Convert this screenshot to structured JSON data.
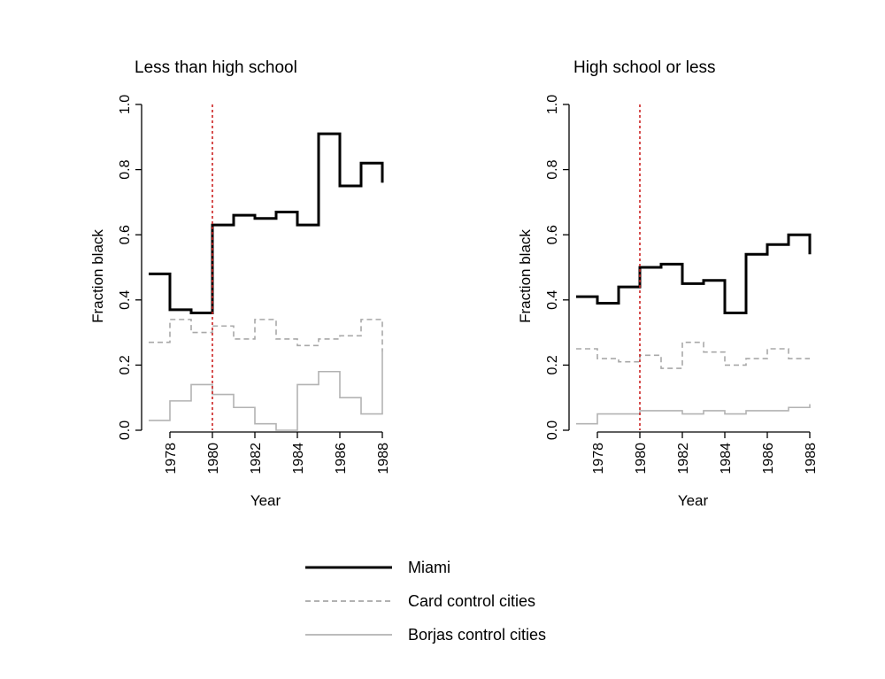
{
  "chart_data": [
    {
      "type": "line",
      "step": true,
      "title": "Less than high school",
      "xlabel": "Year",
      "ylabel": "Fraction black",
      "xlim": [
        1977,
        1988
      ],
      "ylim": [
        0.0,
        1.0
      ],
      "xticks": [
        "1978",
        "1980",
        "1982",
        "1984",
        "1986",
        "1988"
      ],
      "yticks": [
        "0.0",
        "0.2",
        "0.4",
        "0.6",
        "0.8",
        "1.0"
      ],
      "vline": {
        "x": 1980,
        "color": "#cc2222",
        "style": "dotted"
      },
      "x": [
        1977,
        1978,
        1979,
        1980,
        1981,
        1982,
        1983,
        1984,
        1985,
        1986,
        1987,
        1988
      ],
      "series": [
        {
          "name": "Miami",
          "values": [
            0.48,
            0.37,
            0.36,
            0.63,
            0.66,
            0.65,
            0.67,
            0.63,
            0.91,
            0.75,
            0.82,
            0.76
          ]
        },
        {
          "name": "Card control cities",
          "values": [
            0.27,
            0.34,
            0.3,
            0.32,
            0.28,
            0.34,
            0.28,
            0.26,
            0.28,
            0.29,
            0.34,
            0.24
          ]
        },
        {
          "name": "Borjas control cities",
          "values": [
            0.03,
            0.09,
            0.14,
            0.11,
            0.07,
            0.02,
            0.0,
            0.14,
            0.18,
            0.1,
            0.05,
            0.24
          ]
        }
      ]
    },
    {
      "type": "line",
      "step": true,
      "title": "High school or less",
      "xlabel": "Year",
      "ylabel": "Fraction black",
      "xlim": [
        1977,
        1988
      ],
      "ylim": [
        0.0,
        1.0
      ],
      "xticks": [
        "1978",
        "1980",
        "1982",
        "1984",
        "1986",
        "1988"
      ],
      "yticks": [
        "0.0",
        "0.2",
        "0.4",
        "0.6",
        "0.8",
        "1.0"
      ],
      "vline": {
        "x": 1980,
        "color": "#cc2222",
        "style": "dotted"
      },
      "x": [
        1977,
        1978,
        1979,
        1980,
        1981,
        1982,
        1983,
        1984,
        1985,
        1986,
        1987,
        1988
      ],
      "series": [
        {
          "name": "Miami",
          "values": [
            0.41,
            0.39,
            0.44,
            0.5,
            0.51,
            0.45,
            0.46,
            0.36,
            0.54,
            0.57,
            0.6,
            0.54
          ]
        },
        {
          "name": "Card control cities",
          "values": [
            0.25,
            0.22,
            0.21,
            0.23,
            0.19,
            0.27,
            0.24,
            0.2,
            0.22,
            0.25,
            0.22,
            0.22
          ]
        },
        {
          "name": "Borjas control cities",
          "values": [
            0.02,
            0.05,
            0.05,
            0.06,
            0.06,
            0.05,
            0.06,
            0.05,
            0.06,
            0.06,
            0.07,
            0.08
          ]
        }
      ]
    }
  ],
  "legend": {
    "placement": "bottom-center",
    "items": [
      {
        "label": "Miami",
        "color": "#000000",
        "style": "solid"
      },
      {
        "label": "Card control cities",
        "color": "#a8a8a8",
        "style": "dashed"
      },
      {
        "label": "Borjas control cities",
        "color": "#b3b3b3",
        "style": "solid"
      }
    ]
  },
  "series_styles": {
    "Miami": {
      "color": "#000000",
      "style": "solid"
    },
    "Card control cities": {
      "color": "#a8a8a8",
      "style": "dashed"
    },
    "Borjas control cities": {
      "color": "#b3b3b3",
      "style": "solid"
    }
  }
}
